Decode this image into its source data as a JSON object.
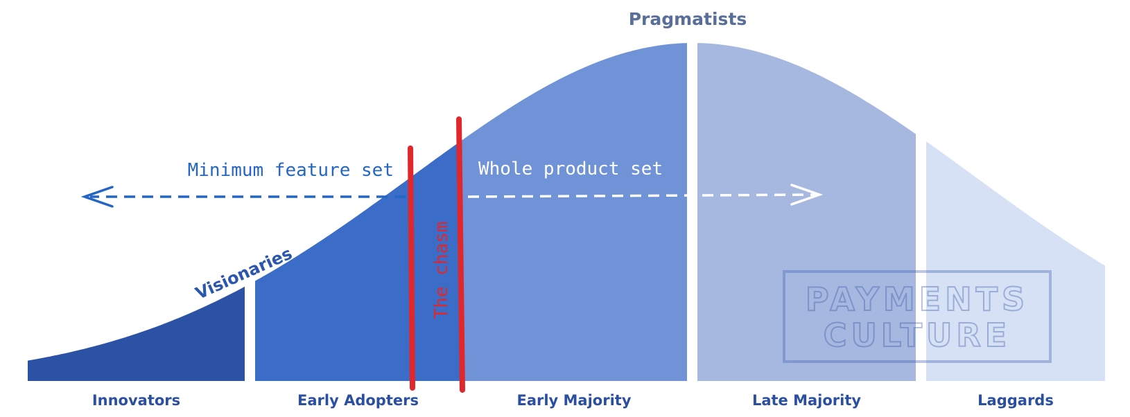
{
  "header": {
    "title": "Pragmatists"
  },
  "annotations": {
    "visionaries": "Visionaries",
    "left_arrow": "Minimum feature set",
    "right_arrow": "Whole product set",
    "chasm": "The chasm"
  },
  "segments": [
    {
      "label": "Innovators"
    },
    {
      "label": "Early Adopters"
    },
    {
      "label": "Early Majority"
    },
    {
      "label": "Late Majority"
    },
    {
      "label": "Laggards"
    }
  ],
  "watermark": {
    "line1": "PAYMENTS",
    "line2": "CULTURE"
  }
}
